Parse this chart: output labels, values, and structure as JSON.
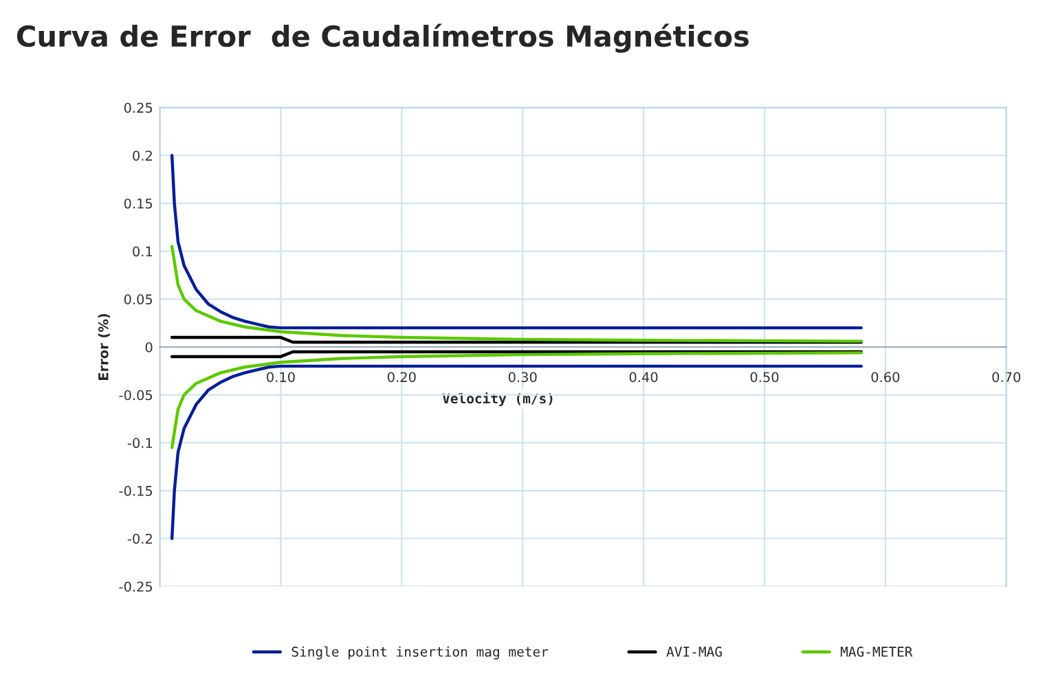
{
  "chart_data": {
    "type": "line",
    "title": "Curva de Error  de Caudalímetros Magnéticos",
    "xlabel": "Velocity (m/s)",
    "ylabel": "Error (%)",
    "xlim": [
      0,
      0.7
    ],
    "xticks": [
      {
        "value": 0,
        "label": null
      },
      {
        "value": 0.1,
        "label": "0.10"
      },
      {
        "value": 0.2,
        "label": "0.20"
      },
      {
        "value": 0.3,
        "label": "0.30"
      },
      {
        "value": 0.4,
        "label": "0.40"
      },
      {
        "value": 0.5,
        "label": "0.50"
      },
      {
        "value": 0.6,
        "label": "0.60"
      },
      {
        "value": 0.7,
        "label": "0.70"
      }
    ],
    "ylim": [
      -0.25,
      0.25
    ],
    "yticks": [
      -0.25,
      -0.2,
      -0.15,
      -0.1,
      -0.05,
      0,
      0.05,
      0.1,
      0.15,
      0.2,
      0.25
    ],
    "grid": true,
    "legend": "bottom",
    "marker": "none",
    "line_style": "solid",
    "series": [
      {
        "name": "Single point insertion mag meter",
        "color": "#001e96",
        "x": [
          0.01,
          0.012,
          0.015,
          0.02,
          0.03,
          0.04,
          0.05,
          0.06,
          0.07,
          0.08,
          0.09,
          0.1,
          0.58
        ],
        "values": [
          0.2,
          0.15,
          0.11,
          0.085,
          0.06,
          0.045,
          0.037,
          0.031,
          0.027,
          0.024,
          0.021,
          0.02,
          0.02
        ]
      },
      {
        "color": "#001e96",
        "x": [
          0.01,
          0.012,
          0.015,
          0.02,
          0.03,
          0.04,
          0.05,
          0.06,
          0.07,
          0.08,
          0.09,
          0.1,
          0.58
        ],
        "values": [
          -0.2,
          -0.15,
          -0.11,
          -0.085,
          -0.06,
          -0.045,
          -0.037,
          -0.031,
          -0.027,
          -0.024,
          -0.021,
          -0.02,
          -0.02
        ]
      },
      {
        "name": "AVI-MAG",
        "color": "#000000",
        "x": [
          0.01,
          0.1,
          0.11,
          0.58
        ],
        "values": [
          0.01,
          0.01,
          0.005,
          0.005
        ]
      },
      {
        "color": "#000000",
        "x": [
          0.01,
          0.1,
          0.11,
          0.58
        ],
        "values": [
          -0.01,
          -0.01,
          -0.005,
          -0.005
        ]
      },
      {
        "name": "MAG-METER",
        "color": "#5cc800",
        "x": [
          0.01,
          0.015,
          0.02,
          0.03,
          0.05,
          0.07,
          0.1,
          0.15,
          0.2,
          0.3,
          0.4,
          0.58
        ],
        "values": [
          0.105,
          0.065,
          0.05,
          0.038,
          0.027,
          0.021,
          0.016,
          0.012,
          0.01,
          0.008,
          0.007,
          0.006
        ]
      },
      {
        "color": "#5cc800",
        "x": [
          0.01,
          0.015,
          0.02,
          0.03,
          0.05,
          0.07,
          0.1,
          0.15,
          0.2,
          0.3,
          0.4,
          0.58
        ],
        "values": [
          -0.105,
          -0.065,
          -0.05,
          -0.038,
          -0.027,
          -0.021,
          -0.016,
          -0.012,
          -0.01,
          -0.008,
          -0.007,
          -0.006
        ]
      }
    ]
  }
}
